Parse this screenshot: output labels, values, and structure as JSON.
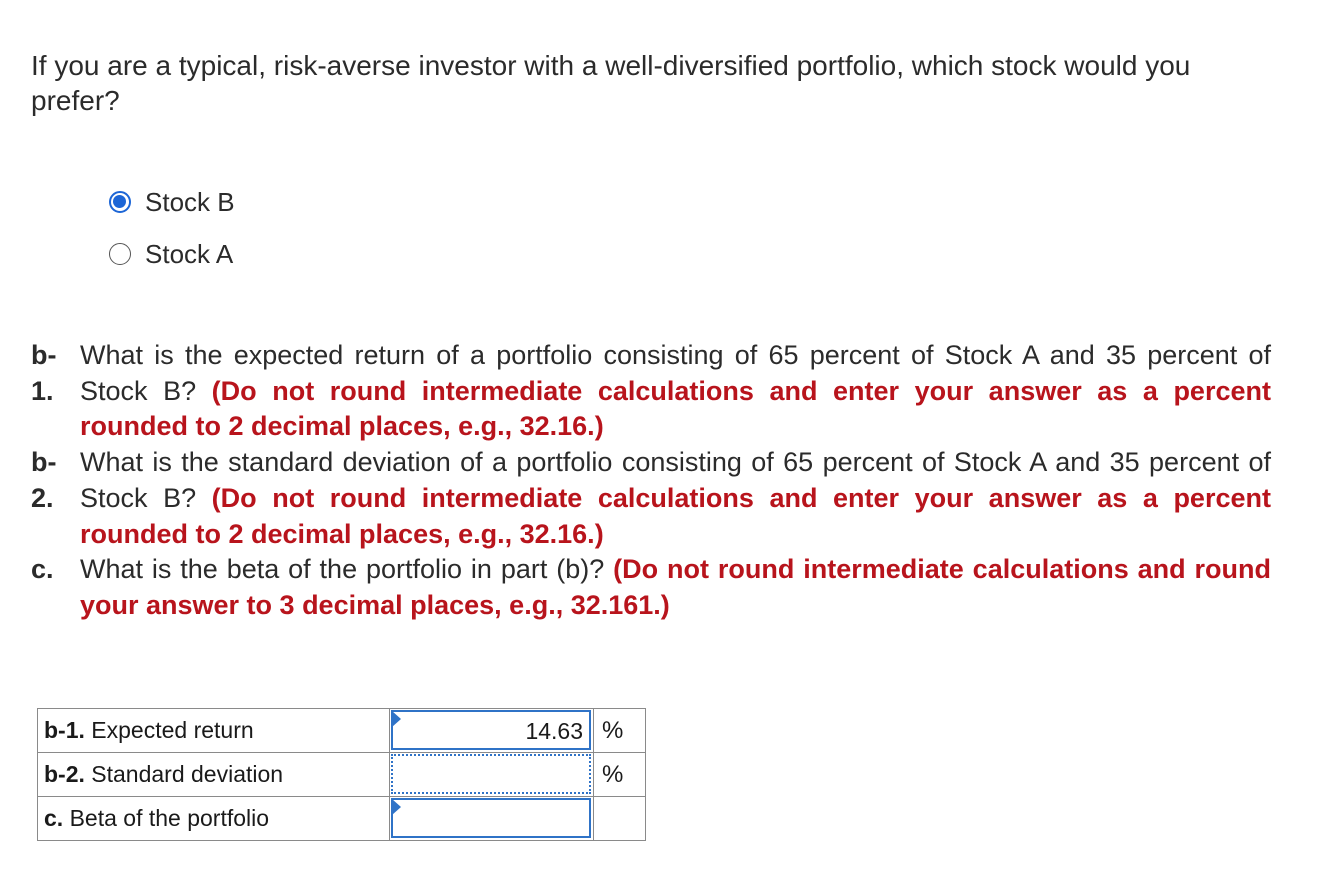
{
  "question": {
    "text": "If you are a typical, risk-averse investor with a well-diversified portfolio, which stock would you prefer?"
  },
  "options": [
    {
      "label": "Stock B",
      "selected": true
    },
    {
      "label": "Stock A",
      "selected": false
    }
  ],
  "parts": [
    {
      "label": "b-\n1.",
      "text": "What is the expected return of a portfolio consisting of 65 percent of Stock A and 35 percent of Stock B?",
      "instruction": "(Do not round intermediate calculations and enter your answer as a percent rounded to 2 decimal places, e.g., 32.16.)"
    },
    {
      "label": "b-\n2.",
      "text": "What is the standard deviation of a portfolio consisting of 65 percent of Stock A and 35 percent of Stock B?",
      "instruction": "(Do not round intermediate calculations and enter your answer as a percent rounded to 2 decimal places, e.g., 32.16.)"
    },
    {
      "label": "c.",
      "text": "What is the beta of the portfolio in part (b)?",
      "instruction": "(Do not round intermediate calculations and round your answer to 3 decimal places, e.g., 32.161.)"
    }
  ],
  "answers": [
    {
      "code": "b-1.",
      "label": "Expected return",
      "value": "14.63",
      "unit": "%"
    },
    {
      "code": "b-2.",
      "label": "Standard deviation",
      "value": "",
      "unit": "%"
    },
    {
      "code": "c.",
      "label": "Beta of the portfolio",
      "value": "",
      "unit": ""
    }
  ],
  "colors": {
    "instruction_red": "#b8141c",
    "accent_blue": "#1d66d6"
  }
}
